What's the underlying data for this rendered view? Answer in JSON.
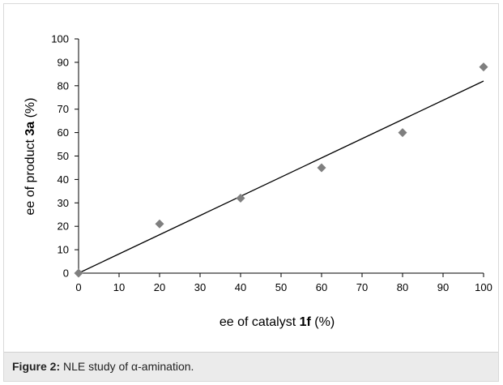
{
  "chart_data": {
    "type": "scatter",
    "x": [
      0,
      20,
      40,
      60,
      80,
      100
    ],
    "y": [
      0,
      21,
      32,
      45,
      60,
      88
    ],
    "trendline": {
      "x": [
        0,
        100
      ],
      "y": [
        0,
        82
      ]
    },
    "xlim": [
      0,
      100
    ],
    "ylim": [
      0,
      100
    ],
    "xticks": [
      "0",
      "10",
      "20",
      "30",
      "40",
      "50",
      "60",
      "70",
      "80",
      "90",
      "100"
    ],
    "yticks": [
      "0",
      "10",
      "20",
      "30",
      "40",
      "50",
      "60",
      "70",
      "80",
      "90",
      "100"
    ],
    "xlabel": {
      "pre": "ee of catalyst ",
      "bold": "1f",
      "post": " (%)"
    },
    "ylabel": {
      "pre": "ee of product ",
      "bold": "3a",
      "post": " (%)"
    },
    "marker": "diamond",
    "marker_color": "#7f7f7f",
    "line_color": "#000000",
    "grid": false
  },
  "caption": {
    "label": "Figure 2:",
    "text": " NLE study of α-amination."
  }
}
